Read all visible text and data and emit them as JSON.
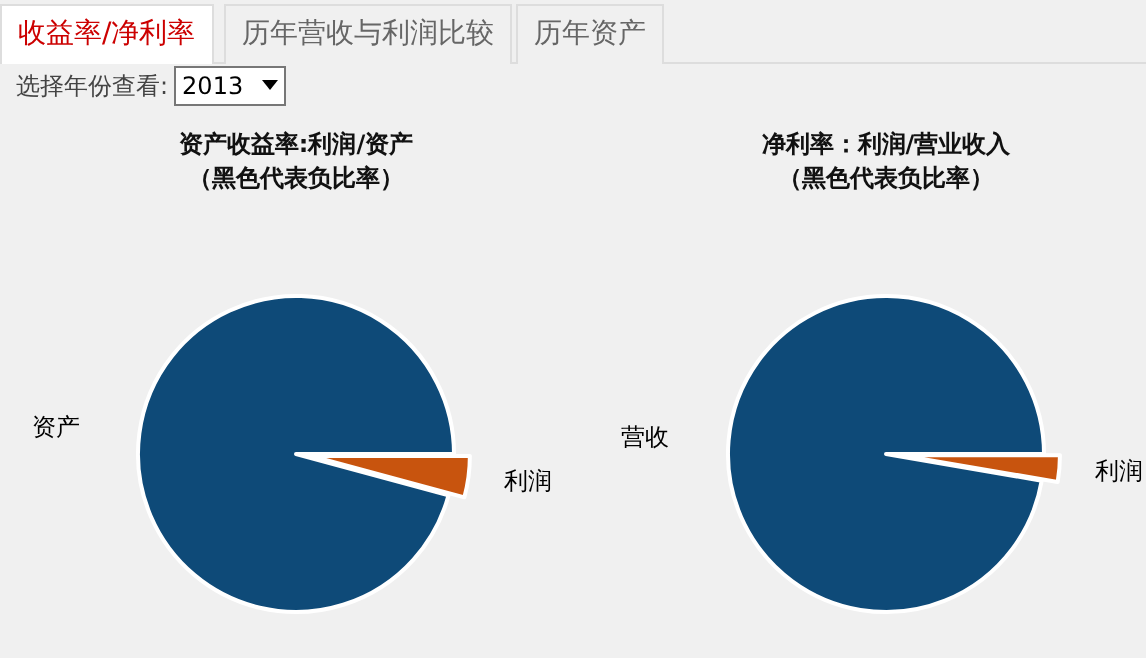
{
  "chart_data": [
    {
      "type": "other",
      "annotations": [
        "收益率/净利率",
        "历年营收与利润比较",
        "历年资产",
        "选择年份查看:",
        "2013"
      ]
    },
    {
      "type": "pie",
      "title": "资产收益率:利润/资产",
      "subtitle": "（黑色代表负比率）",
      "categories": [
        "利润",
        "资产"
      ],
      "values": [
        4.2,
        95.8
      ],
      "colors": [
        "#c8540e",
        "#0e4a78"
      ]
    },
    {
      "type": "pie",
      "title": "净利率：利润/营业收入",
      "subtitle": "（黑色代表负比率）",
      "categories": [
        "利润",
        "营收"
      ],
      "values": [
        2.7,
        97.3
      ],
      "colors": [
        "#c8540e",
        "#0e4a78"
      ]
    }
  ]
}
